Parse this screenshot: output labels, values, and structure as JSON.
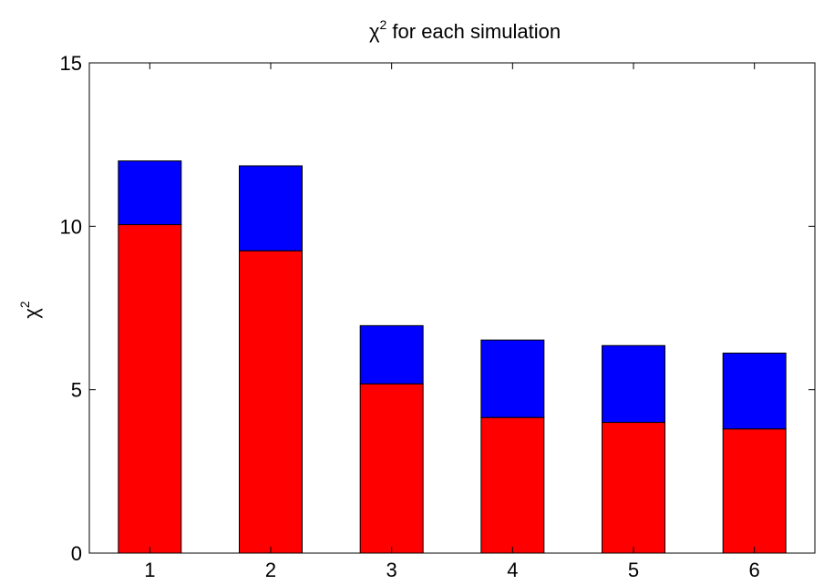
{
  "chart_data": {
    "type": "bar",
    "stacked": true,
    "title": {
      "base": "χ",
      "sup": "2",
      "rest": " for each simulation"
    },
    "ylabel": {
      "base": "χ",
      "sup": "2"
    },
    "xlabel": "",
    "categories": [
      "1",
      "2",
      "3",
      "4",
      "5",
      "6"
    ],
    "series": [
      {
        "color": "#ff0000",
        "values": [
          10.05,
          9.25,
          5.18,
          4.15,
          4.0,
          3.8
        ]
      },
      {
        "color": "#0000ff",
        "values": [
          1.95,
          2.6,
          1.78,
          2.37,
          2.35,
          2.32
        ]
      }
    ],
    "totals": [
      12.0,
      11.85,
      6.96,
      6.52,
      6.35,
      6.12
    ],
    "ylim": [
      0,
      15
    ],
    "yticks": [
      "0",
      "5",
      "10",
      "15"
    ],
    "grid": false,
    "legend": null
  }
}
